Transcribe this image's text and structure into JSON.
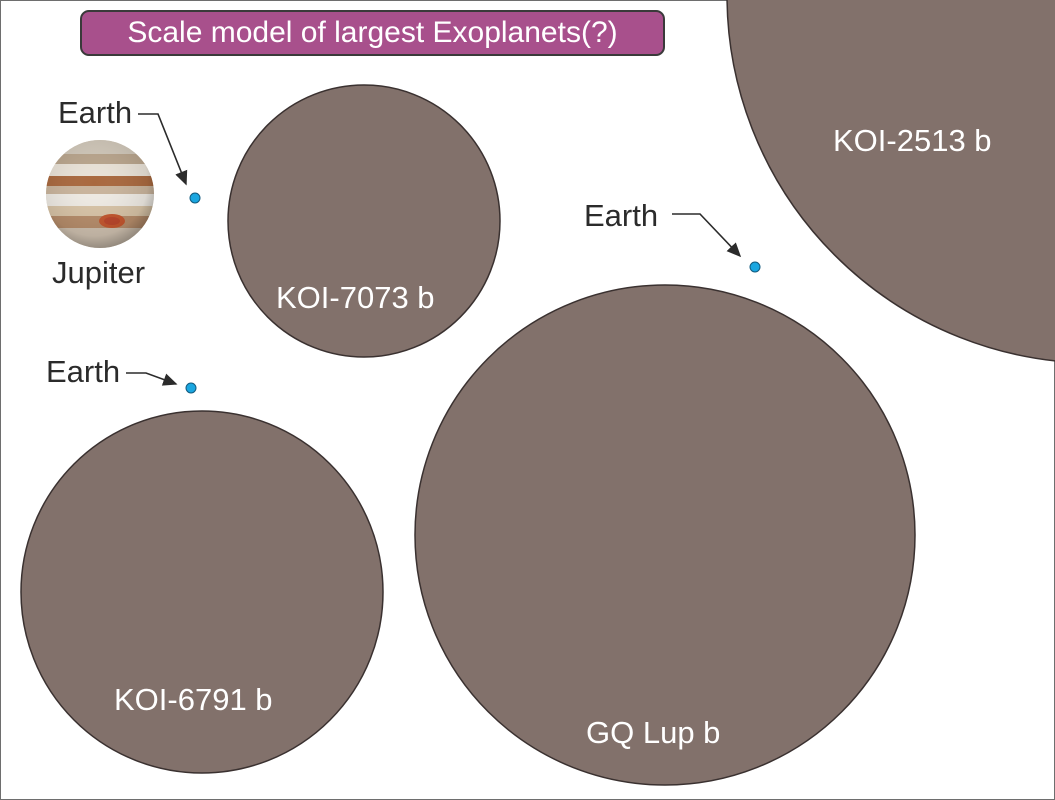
{
  "title": "Scale model of largest Exoplanets(?)",
  "colors": {
    "planet_fill": "#82716b",
    "planet_stroke": "#3a3130",
    "earth_fill": "#1aa6e0",
    "earth_stroke": "#125a7e",
    "title_box": "#a8508c",
    "arrow": "#2b2b2b"
  },
  "jupiter": {
    "label": "Jupiter",
    "icon": "jupiter-icon"
  },
  "earth_label": "Earth",
  "planets": [
    {
      "id": "koi-7073b",
      "label": "KOI-7073 b"
    },
    {
      "id": "koi-6791b",
      "label": "KOI-6791 b"
    },
    {
      "id": "gq-lup-b",
      "label": "GQ Lup b"
    },
    {
      "id": "koi-2513b",
      "label": "KOI-2513 b"
    }
  ]
}
